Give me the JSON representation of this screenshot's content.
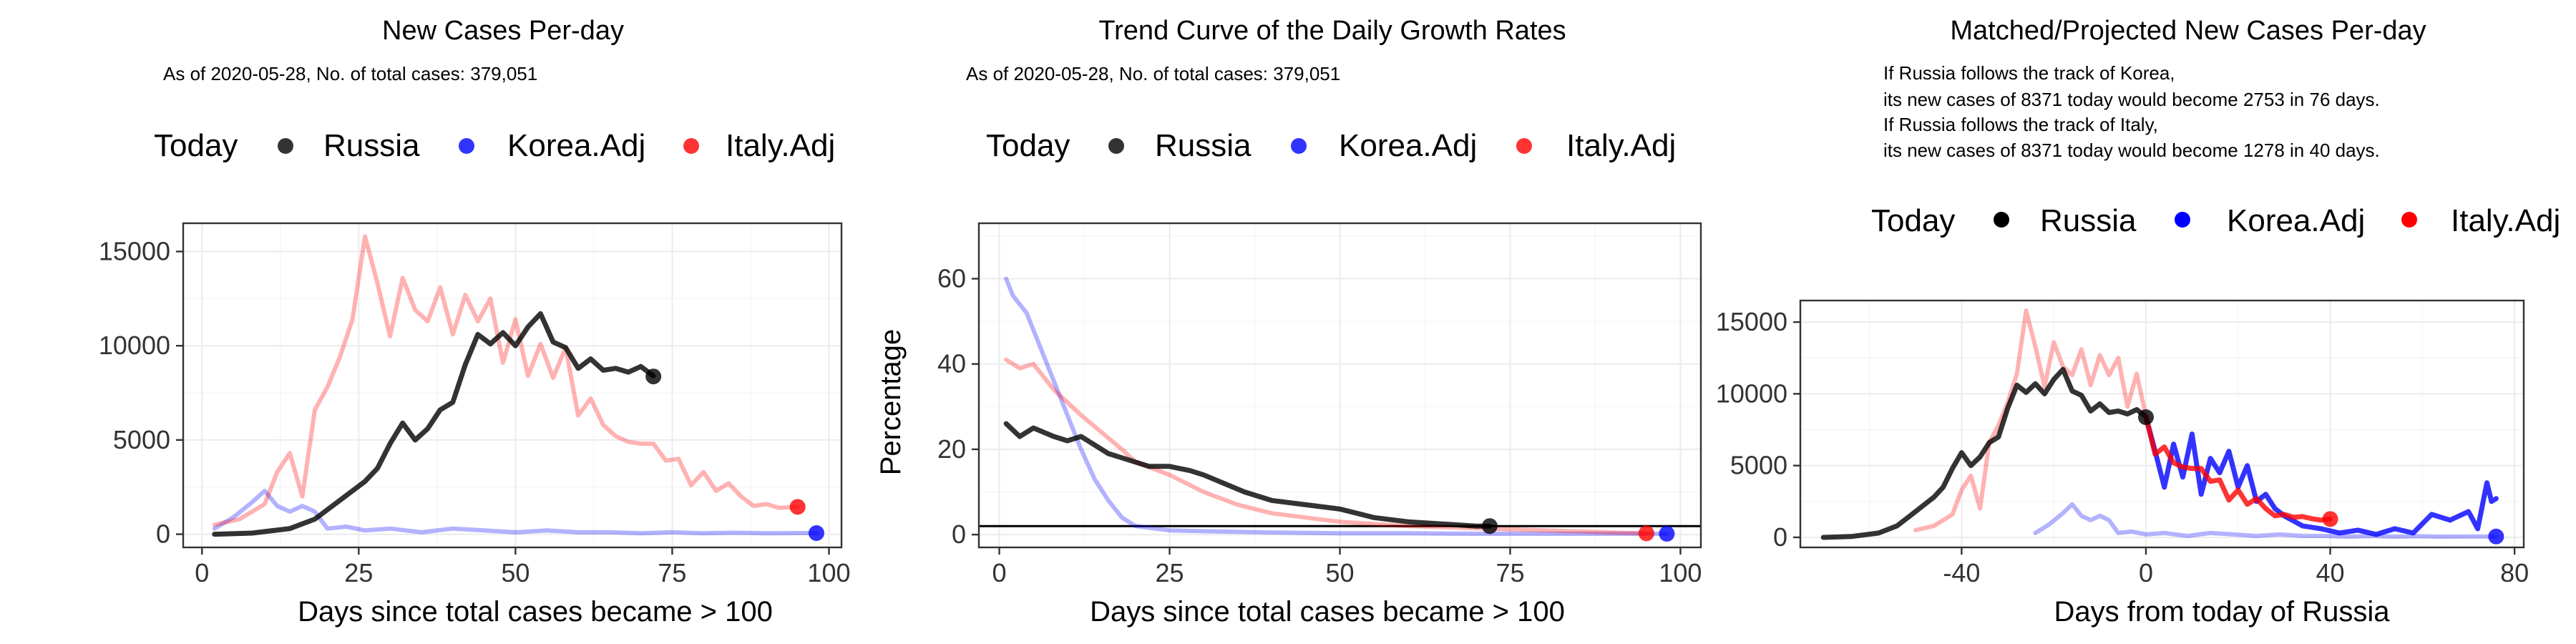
{
  "chart_data": [
    {
      "type": "line",
      "title": "New Cases Per-day",
      "subtitle": "As of 2020-05-28, No. of total cases: 379,051",
      "legend": {
        "title": "Today",
        "items": [
          "Russia",
          "Korea.Adj",
          "Italy.Adj"
        ],
        "position": "top"
      },
      "xlabel": "Days since total cases became > 100",
      "ylabel": "",
      "xlim": [
        -3,
        102
      ],
      "ylim": [
        -700,
        16500
      ],
      "xticks": [
        0,
        25,
        50,
        75,
        100
      ],
      "yticks": [
        0,
        5000,
        10000,
        15000
      ],
      "series": [
        {
          "name": "Russia",
          "color": "#000000",
          "width": 7,
          "opacity": 0.8,
          "x": [
            2,
            8,
            14,
            18,
            22,
            26,
            28,
            30,
            32,
            34,
            36,
            38,
            40,
            42,
            44,
            46,
            48,
            50,
            52,
            54,
            56,
            58,
            60,
            62,
            64,
            66,
            68,
            70,
            72
          ],
          "y": [
            0,
            60,
            300,
            800,
            1800,
            2800,
            3500,
            4800,
            5900,
            5000,
            5600,
            6600,
            7000,
            9000,
            10600,
            10100,
            10700,
            10000,
            11000,
            11700,
            10200,
            9900,
            8800,
            9300,
            8700,
            8800,
            8600,
            8900,
            8400
          ],
          "end": [
            72,
            8371
          ]
        },
        {
          "name": "Korea.Adj",
          "color": "#0000ff",
          "width": 6,
          "opacity": 0.3,
          "x": [
            2,
            5,
            8,
            10,
            12,
            14,
            16,
            18,
            20,
            23,
            26,
            30,
            35,
            40,
            45,
            50,
            55,
            60,
            65,
            70,
            75,
            80,
            85,
            90,
            95,
            98
          ],
          "y": [
            300,
            900,
            1700,
            2300,
            1500,
            1200,
            1500,
            1200,
            300,
            400,
            200,
            300,
            100,
            300,
            200,
            100,
            200,
            100,
            100,
            50,
            100,
            50,
            80,
            50,
            60,
            60
          ],
          "end": [
            98,
            60
          ]
        },
        {
          "name": "Italy.Adj",
          "color": "#ff0000",
          "width": 6,
          "opacity": 0.3,
          "x": [
            2,
            6,
            10,
            12,
            14,
            16,
            18,
            20,
            22,
            24,
            26,
            28,
            30,
            32,
            34,
            36,
            38,
            40,
            42,
            44,
            46,
            48,
            50,
            52,
            54,
            56,
            58,
            60,
            62,
            64,
            66,
            68,
            70,
            72,
            74,
            76,
            78,
            80,
            82,
            84,
            86,
            88,
            90,
            92,
            95
          ],
          "y": [
            500,
            800,
            1600,
            3300,
            4300,
            2000,
            6600,
            7800,
            9400,
            11400,
            15800,
            13300,
            10500,
            13600,
            11900,
            11300,
            13100,
            10600,
            12700,
            11300,
            12500,
            9100,
            11400,
            8400,
            10100,
            8300,
            9900,
            6300,
            7200,
            5800,
            5200,
            4900,
            4800,
            4800,
            3900,
            4000,
            2600,
            3300,
            2300,
            2700,
            2000,
            1500,
            1600,
            1400,
            1450
          ],
          "end": [
            95,
            1450
          ]
        }
      ]
    },
    {
      "type": "line",
      "title": "Trend Curve of the Daily Growth Rates",
      "subtitle": "As of 2020-05-28, No. of total cases: 379,051",
      "legend": {
        "title": "Today",
        "items": [
          "Russia",
          "Korea.Adj",
          "Italy.Adj"
        ],
        "position": "top"
      },
      "xlabel": "Days since total cases became > 100",
      "ylabel": "Percentage",
      "xlim": [
        -3,
        103
      ],
      "ylim": [
        -3,
        73
      ],
      "xticks": [
        0,
        25,
        50,
        75,
        100
      ],
      "yticks": [
        0,
        20,
        40,
        60
      ],
      "hline": 2,
      "series": [
        {
          "name": "Russia",
          "color": "#000000",
          "width": 7,
          "opacity": 0.8,
          "x": [
            1,
            3,
            5,
            8,
            10,
            12,
            14,
            16,
            18,
            20,
            22,
            25,
            28,
            30,
            33,
            36,
            40,
            45,
            50,
            55,
            60,
            65,
            70,
            72
          ],
          "y": [
            26,
            23,
            25,
            23,
            22,
            23,
            21,
            19,
            18,
            17,
            16,
            16,
            15,
            14,
            12,
            10,
            8,
            7,
            6,
            4,
            3,
            2.5,
            2,
            2
          ],
          "end": [
            72,
            2
          ]
        },
        {
          "name": "Korea.Adj",
          "color": "#0000ff",
          "width": 6,
          "opacity": 0.3,
          "x": [
            1,
            2,
            4,
            6,
            8,
            10,
            12,
            14,
            16,
            18,
            20,
            25,
            30,
            40,
            50,
            60,
            70,
            80,
            90,
            98
          ],
          "y": [
            60,
            56,
            52,
            44,
            36,
            28,
            20,
            13,
            8,
            4,
            2,
            1,
            0.8,
            0.5,
            0.3,
            0.3,
            0.2,
            0.2,
            0.2,
            0.2
          ],
          "end": [
            98,
            0.2
          ]
        },
        {
          "name": "Italy.Adj",
          "color": "#ff0000",
          "width": 6,
          "opacity": 0.3,
          "x": [
            1,
            3,
            5,
            8,
            10,
            12,
            15,
            18,
            20,
            25,
            30,
            35,
            40,
            45,
            50,
            55,
            60,
            70,
            80,
            90,
            95
          ],
          "y": [
            41,
            39,
            40,
            34,
            31,
            28,
            24,
            20,
            17,
            14,
            10,
            7,
            5,
            4,
            3,
            2.5,
            2,
            1.5,
            1,
            0.5,
            0.3
          ],
          "end": [
            95,
            0.3
          ]
        }
      ]
    },
    {
      "type": "line",
      "title": "Matched/Projected New Cases Per-day",
      "notes": [
        "If Russia follows the track of Korea,",
        "its new cases of 8371 today would become 2753 in 76 days.",
        "If Russia follows the track of Italy,",
        "its new cases of 8371 today would become 1278 in 40 days."
      ],
      "legend": {
        "title": "Today",
        "items": [
          "Russia",
          "Korea.Adj",
          "Italy.Adj"
        ],
        "position": "top"
      },
      "xlabel": "Days from today of Russia",
      "ylabel": "",
      "xlim": [
        -75,
        82
      ],
      "ylim": [
        -700,
        16500
      ],
      "xticks": [
        -40,
        0,
        40,
        80
      ],
      "yticks": [
        0,
        5000,
        10000,
        15000
      ],
      "series": [
        {
          "name": "Russia",
          "color": "#000000",
          "width": 7,
          "opacity": 0.8,
          "x": [
            -70,
            -64,
            -58,
            -54,
            -50,
            -46,
            -44,
            -42,
            -40,
            -38,
            -36,
            -34,
            -32,
            -30,
            -28,
            -26,
            -24,
            -22,
            -20,
            -18,
            -16,
            -14,
            -12,
            -10,
            -8,
            -6,
            -4,
            -2,
            0
          ],
          "y": [
            0,
            60,
            300,
            800,
            1800,
            2800,
            3500,
            4800,
            5900,
            5000,
            5600,
            6600,
            7000,
            9000,
            10600,
            10100,
            10700,
            10000,
            11000,
            11700,
            10200,
            9900,
            8800,
            9300,
            8700,
            8800,
            8600,
            8900,
            8400
          ],
          "end": [
            0,
            8371
          ]
        },
        {
          "name": "Korea.Adj (history)",
          "color": "#0000ff",
          "width": 6,
          "opacity": 0.3,
          "x": [
            -24,
            -21,
            -18,
            -16,
            -14,
            -12,
            -10,
            -8,
            -6,
            -3,
            0,
            4,
            9,
            14,
            19,
            24,
            29,
            34,
            39,
            44,
            49,
            54,
            59,
            64,
            69,
            74,
            76
          ],
          "y": [
            300,
            900,
            1700,
            2300,
            1500,
            1200,
            1500,
            1200,
            300,
            400,
            200,
            300,
            100,
            300,
            200,
            100,
            200,
            100,
            100,
            50,
            100,
            50,
            80,
            50,
            60,
            60,
            60
          ],
          "end": [
            76,
            60
          ]
        },
        {
          "name": "Korea.Adj (projected)",
          "color": "#0000ff",
          "width": 7,
          "opacity": 0.8,
          "x": [
            0,
            2,
            4,
            6,
            8,
            10,
            12,
            14,
            16,
            18,
            20,
            22,
            24,
            26,
            28,
            30,
            34,
            38,
            42,
            46,
            50,
            54,
            58,
            62,
            66,
            70,
            72,
            74,
            75,
            76
          ],
          "y": [
            8400,
            6000,
            3500,
            6500,
            4200,
            7200,
            3000,
            5500,
            4500,
            6000,
            3500,
            5000,
            2500,
            3000,
            2000,
            1500,
            800,
            600,
            300,
            500,
            200,
            600,
            300,
            1600,
            1200,
            1800,
            600,
            3800,
            2500,
            2700
          ]
        },
        {
          "name": "Italy.Adj (history)",
          "color": "#ff0000",
          "width": 6,
          "opacity": 0.3,
          "x": [
            -50,
            -46,
            -42,
            -40,
            -38,
            -36,
            -34,
            -32,
            -30,
            -28,
            -26,
            -24,
            -22,
            -20,
            -18,
            -16,
            -14,
            -12,
            -10,
            -8,
            -6,
            -4,
            -2,
            0
          ],
          "y": [
            500,
            800,
            1600,
            3300,
            4300,
            2000,
            6600,
            7800,
            9400,
            11400,
            15800,
            13300,
            10500,
            13600,
            11900,
            11300,
            13100,
            10600,
            12700,
            11300,
            12500,
            9100,
            11400,
            8400
          ]
        },
        {
          "name": "Italy.Adj (projected)",
          "color": "#ff0000",
          "width": 7,
          "opacity": 0.8,
          "x": [
            0,
            2,
            4,
            6,
            8,
            10,
            12,
            14,
            16,
            18,
            20,
            22,
            24,
            26,
            28,
            30,
            32,
            34,
            36,
            38,
            40
          ],
          "y": [
            8400,
            5800,
            6300,
            5200,
            4900,
            4800,
            4800,
            3900,
            4000,
            2600,
            3300,
            2300,
            2700,
            2000,
            1500,
            1600,
            1400,
            1450,
            1300,
            1200,
            1278
          ],
          "end": [
            40,
            1278
          ]
        }
      ]
    }
  ]
}
